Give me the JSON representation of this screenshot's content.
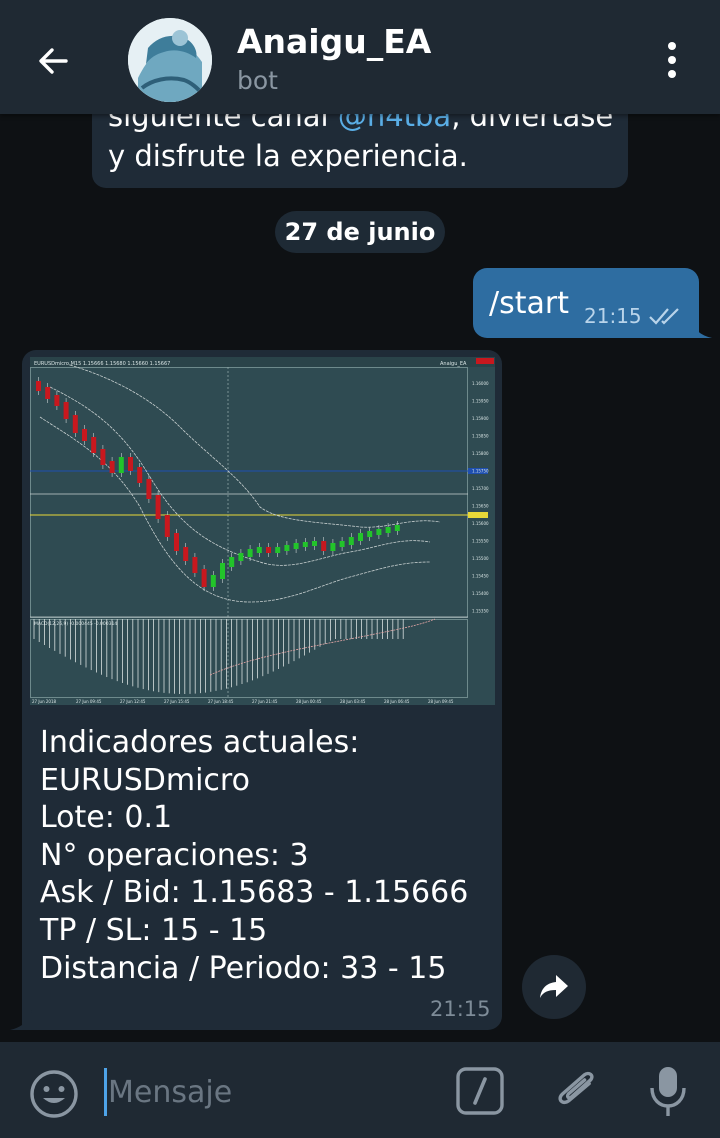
{
  "header": {
    "title": "Anaigu_EA",
    "subtitle": "bot",
    "icons": [
      "back-arrow-icon",
      "bot-avatar",
      "more-vertical-icon"
    ]
  },
  "messages": {
    "previous_partial": {
      "line1_prefix": "siguiente canal ",
      "mention": "@h4tba",
      "line1_suffix": ", diviertase",
      "line2": "y disfrute la experiencia."
    },
    "date_chip": "27 de junio",
    "outgoing": {
      "text": "/start",
      "time": "21:15",
      "status_icon": "double-check-icon"
    },
    "incoming": {
      "chart_image": {
        "symbol_header": "EURUSDmicro,M15 1.15666 1.15680 1.15660 1.15667",
        "ea_name": "Anaigu_EA",
        "price_labels": [
          "1.16000",
          "1.15950",
          "1.15900",
          "1.15850",
          "1.15800",
          "1.15750",
          "1.15700",
          "1.15650",
          "1.15600",
          "1.15550",
          "1.15500",
          "1.15450",
          "1.15400",
          "1.15350"
        ],
        "time_labels": [
          "27 Jun 2018",
          "27 Jun 09:45",
          "27 Jun 12:45",
          "27 Jun 15:45",
          "27 Jun 18:45",
          "27 Jun 21:45",
          "28 Jun 00:45",
          "28 Jun 03:45",
          "28 Jun 06:45",
          "28 Jun 09:45"
        ],
        "indicator_label": "MACD(12,26,9) -0.000445 -0.000314"
      },
      "lines": [
        "Indicadores actuales:",
        "EURUSDmicro",
        "Lote: 0.1",
        "N° operaciones: 3",
        "Ask / Bid: 1.15683 - 1.15666",
        "TP / SL: 15 - 15",
        "Distancia / Periodo: 33 - 15"
      ],
      "time": "21:15"
    }
  },
  "input_bar": {
    "placeholder": "Mensaje",
    "value": "",
    "icons": [
      "emoji-icon",
      "bot-command-icon",
      "attach-icon",
      "microphone-icon"
    ]
  },
  "colors": {
    "header_bg": "#1f2933",
    "chat_bg": "#0e1114",
    "incoming_bubble": "#1f2b37",
    "outgoing_bubble": "#2e6da1",
    "link": "#5aaee6",
    "chart_bg": "#2f4b52",
    "bull_candle": "#22c42a",
    "bear_candle": "#c8181e"
  }
}
